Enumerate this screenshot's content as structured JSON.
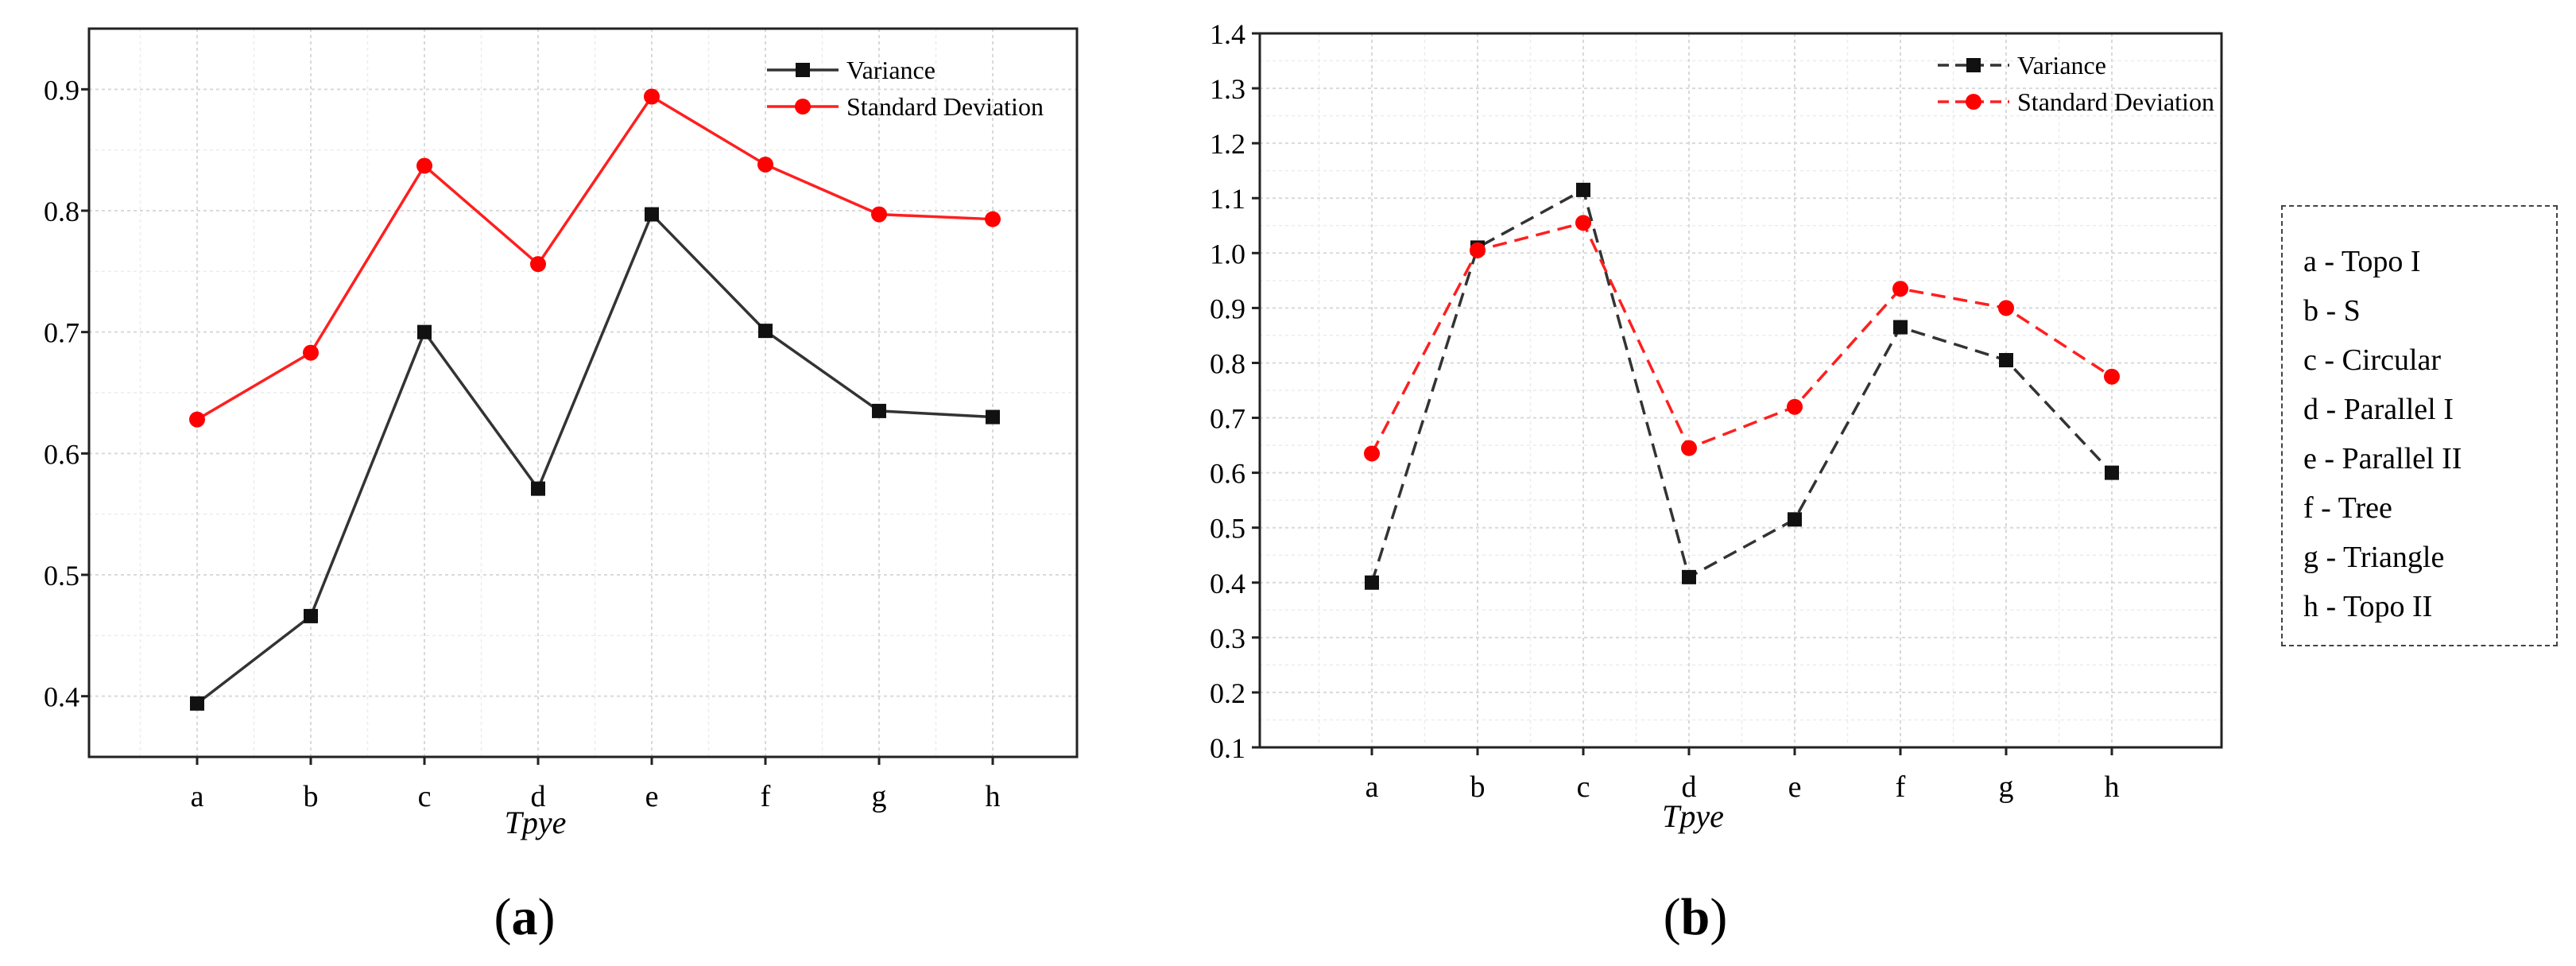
{
  "chart_data": [
    {
      "panel_label": "a",
      "type": "line",
      "title": "",
      "xlabel": "Tpye",
      "ylabel": "",
      "categories": [
        "a",
        "b",
        "c",
        "d",
        "e",
        "f",
        "g",
        "h"
      ],
      "yticks": [
        "0.4",
        "0.5",
        "0.6",
        "0.7",
        "0.8",
        "0.9"
      ],
      "ylim": [
        0.35,
        0.95
      ],
      "grid": true,
      "legend_position": "top-right",
      "series": [
        {
          "name": "Variance",
          "color": "#333333",
          "dashed": false,
          "marker": "square",
          "values": [
            0.394,
            0.466,
            0.7,
            0.571,
            0.797,
            0.701,
            0.635,
            0.63
          ]
        },
        {
          "name": "Standard Deviation",
          "color": "#ff1f1f",
          "dashed": false,
          "marker": "circle",
          "values": [
            0.628,
            0.683,
            0.837,
            0.756,
            0.894,
            0.838,
            0.797,
            0.793
          ]
        }
      ]
    },
    {
      "panel_label": "b",
      "type": "line",
      "title": "",
      "xlabel": "Tpye",
      "ylabel": "",
      "categories": [
        "a",
        "b",
        "c",
        "d",
        "e",
        "f",
        "g",
        "h"
      ],
      "yticks": [
        "0.1",
        "0.2",
        "0.3",
        "0.4",
        "0.5",
        "0.6",
        "0.7",
        "0.8",
        "0.9",
        "1.0",
        "1.1",
        "1.2",
        "1.3",
        "1.4"
      ],
      "ylim": [
        0.1,
        1.4
      ],
      "grid": true,
      "legend_position": "top-right",
      "series": [
        {
          "name": "Variance",
          "color": "#333333",
          "dashed": true,
          "marker": "square",
          "values": [
            0.4,
            1.01,
            1.115,
            0.41,
            0.515,
            0.865,
            0.805,
            0.6
          ]
        },
        {
          "name": "Standard Deviation",
          "color": "#ff1f1f",
          "dashed": true,
          "marker": "circle",
          "values": [
            0.635,
            1.005,
            1.055,
            0.645,
            0.72,
            0.935,
            0.9,
            0.775
          ]
        }
      ]
    }
  ],
  "type_legend": [
    "a - Topo I",
    "b - S",
    "c - Circular",
    "d - Parallel I",
    "e - Parallel II",
    "f - Tree",
    "g - Triangle",
    "h - Topo II"
  ]
}
